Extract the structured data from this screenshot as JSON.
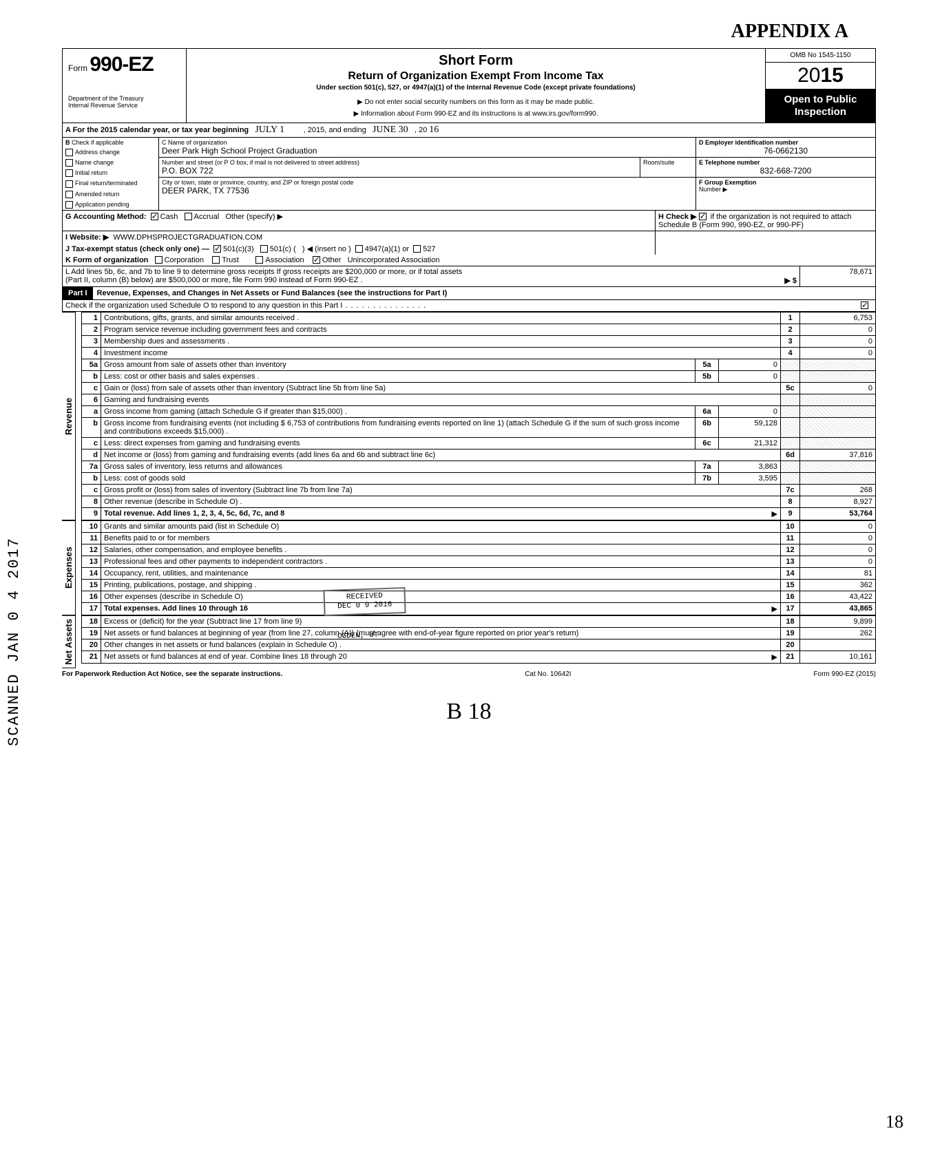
{
  "appendix": "APPENDIX A",
  "form": {
    "prefix": "Form",
    "number": "990-EZ",
    "dept": "Department of the Treasury\nInternal Revenue Service",
    "title1": "Short Form",
    "title2": "Return of Organization Exempt From Income Tax",
    "title3": "Under section 501(c), 527, or 4947(a)(1) of the Internal Revenue Code (except private foundations)",
    "title4": "▶ Do not enter social security numbers on this form as it may be made public.",
    "title5": "▶ Information about Form 990-EZ and its instructions is at www.irs.gov/form990.",
    "omb": "OMB No 1545-1150",
    "year_prefix": "20",
    "year_bold": "15",
    "open": "Open to Public\nInspection"
  },
  "lineA": {
    "label": "A For the 2015 calendar year, or tax year beginning",
    "begin": "JULY  1",
    "mid": ", 2015, and ending",
    "end": "JUNE  30",
    "end2": ", 20",
    "end3": "16"
  },
  "boxB": {
    "label": "B",
    "check": "Check if applicable",
    "items": [
      "Address change",
      "Name change",
      "Initial return",
      "Final return/terminated",
      "Amended return",
      "Application pending"
    ]
  },
  "boxC": {
    "label": "C Name of organization",
    "name": "Deer Park High School Project Graduation",
    "addr_label": "Number and street (or P O  box, if mail is not delivered to street address)",
    "room": "Room/suite",
    "addr": "P.O. BOX 722",
    "city_label": "City or town, state or province, country, and ZIP or foreign postal code",
    "city": "DEER PARK, TX 77536"
  },
  "boxD": {
    "label": "D Employer identification number",
    "val": "76-0662130"
  },
  "boxE": {
    "label": "E Telephone number",
    "val": "832-668-7200"
  },
  "boxF": {
    "label": "F Group Exemption",
    "label2": "Number ▶",
    "val": ""
  },
  "lineG": {
    "label": "G Accounting Method:",
    "cash": "Cash",
    "accrual": "Accrual",
    "other": "Other (specify) ▶"
  },
  "lineH": {
    "label": "H Check ▶",
    "text": "if the organization is not required to attach Schedule B (Form 990, 990-EZ, or 990-PF)"
  },
  "lineI": {
    "label": "I  Website: ▶",
    "val": "WWW.DPHSPROJECTGRADUATION.COM"
  },
  "lineJ": {
    "label": "J Tax-exempt status (check only one) —",
    "a": "501(c)(3)",
    "b": "501(c) (",
    "b2": ") ◀ (insert no )",
    "c": "4947(a)(1) or",
    "d": "527"
  },
  "lineK": {
    "label": "K Form of organization",
    "a": "Corporation",
    "b": "Trust",
    "c": "Association",
    "d": "Other",
    "val": "Unincorporated Association"
  },
  "lineL": {
    "text1": "L Add lines 5b, 6c, and 7b to line 9 to determine gross receipts  If gross receipts are $200,000 or more, or if total assets",
    "text2": "(Part II, column (B) below) are $500,000 or more, file Form 990 instead of Form 990-EZ .",
    "arrow": "▶  $",
    "val": "78,671"
  },
  "partI": {
    "hdr": "Part I",
    "title": "Revenue, Expenses, and Changes in Net Assets or Fund Balances (see the instructions for Part I)",
    "check": "Check if the organization used Schedule O to respond to any question in this Part I"
  },
  "sections": {
    "revenue": "Revenue",
    "expenses": "Expenses",
    "netassets": "Net Assets"
  },
  "lines": [
    {
      "n": "1",
      "desc": "Contributions, gifts, grants, and similar amounts received .",
      "rn": "1",
      "amt": "6,753"
    },
    {
      "n": "2",
      "desc": "Program service revenue including government fees and contracts",
      "rn": "2",
      "amt": "0"
    },
    {
      "n": "3",
      "desc": "Membership dues and assessments .",
      "rn": "3",
      "amt": "0"
    },
    {
      "n": "4",
      "desc": "Investment income",
      "rn": "4",
      "amt": "0"
    },
    {
      "n": "5a",
      "desc": "Gross amount from sale of assets other than inventory",
      "in": "5a",
      "iv": "0"
    },
    {
      "n": "b",
      "desc": "Less: cost or other basis and sales expenses .",
      "in": "5b",
      "iv": "0"
    },
    {
      "n": "c",
      "desc": "Gain or (loss) from sale of assets other than inventory (Subtract line 5b from line 5a)",
      "rn": "5c",
      "amt": "0"
    },
    {
      "n": "6",
      "desc": "Gaming and fundraising events"
    },
    {
      "n": "a",
      "desc": "Gross income from gaming (attach Schedule G if greater than $15,000) .",
      "in": "6a",
      "iv": "0"
    },
    {
      "n": "b",
      "desc": "Gross income from fundraising events (not including  $              6,753 of contributions from fundraising events reported on line 1) (attach Schedule G if the sum of such gross income and contributions exceeds $15,000) .",
      "in": "6b",
      "iv": "59,128"
    },
    {
      "n": "c",
      "desc": "Less: direct expenses from gaming and fundraising events",
      "in": "6c",
      "iv": "21,312"
    },
    {
      "n": "d",
      "desc": "Net income or (loss) from gaming and fundraising events (add lines 6a and 6b and subtract line 6c)",
      "rn": "6d",
      "amt": "37,816"
    },
    {
      "n": "7a",
      "desc": "Gross sales of inventory, less returns and allowances",
      "in": "7a",
      "iv": "3,863"
    },
    {
      "n": "b",
      "desc": "Less: cost of goods sold",
      "in": "7b",
      "iv": "3,595"
    },
    {
      "n": "c",
      "desc": "Gross profit or (loss) from sales of inventory (Subtract line 7b from line 7a)",
      "rn": "7c",
      "amt": "268"
    },
    {
      "n": "8",
      "desc": "Other revenue (describe in Schedule O) .",
      "rn": "8",
      "amt": "8,927"
    },
    {
      "n": "9",
      "desc": "Total revenue. Add lines 1, 2, 3, 4, 5c, 6d, 7c, and 8",
      "rn": "9",
      "amt": "53,764",
      "bold": true,
      "arrow": true
    }
  ],
  "exp_lines": [
    {
      "n": "10",
      "desc": "Grants and similar amounts paid (list in Schedule O)",
      "rn": "10",
      "amt": "0"
    },
    {
      "n": "11",
      "desc": "Benefits paid to or for members",
      "rn": "11",
      "amt": "0"
    },
    {
      "n": "12",
      "desc": "Salaries, other compensation, and employee benefits .",
      "rn": "12",
      "amt": "0"
    },
    {
      "n": "13",
      "desc": "Professional fees and other payments to independent contractors .",
      "rn": "13",
      "amt": "0"
    },
    {
      "n": "14",
      "desc": "Occupancy, rent, utilities, and maintenance",
      "rn": "14",
      "amt": "81"
    },
    {
      "n": "15",
      "desc": "Printing, publications, postage, and shipping .",
      "rn": "15",
      "amt": "362"
    },
    {
      "n": "16",
      "desc": "Other expenses (describe in Schedule O)",
      "rn": "16",
      "amt": "43,422"
    },
    {
      "n": "17",
      "desc": "Total expenses. Add lines 10 through 16",
      "rn": "17",
      "amt": "43,865",
      "bold": true,
      "arrow": true
    }
  ],
  "na_lines": [
    {
      "n": "18",
      "desc": "Excess or (deficit) for the year (Subtract line 17 from line 9)",
      "rn": "18",
      "amt": "9,899"
    },
    {
      "n": "19",
      "desc": "Net assets or fund balances at beginning of year (from line 27, column (A)) (must agree with end-of-year figure reported on prior year's return)",
      "rn": "19",
      "amt": "262"
    },
    {
      "n": "20",
      "desc": "Other changes in net assets or fund balances (explain in Schedule O) .",
      "rn": "20",
      "amt": ""
    },
    {
      "n": "21",
      "desc": "Net assets or fund balances at end of year. Combine lines 18 through 20",
      "rn": "21",
      "amt": "10,161",
      "arrow": true
    }
  ],
  "stamp": {
    "received": "RECEIVED",
    "date": "DEC 0 9 2016",
    "ogden": "OGDEN, UT"
  },
  "vert_stamp": "SCANNED JAN 0 4 2017",
  "footer": {
    "left": "For Paperwork Reduction Act Notice, see the separate instructions.",
    "mid": "Cat  No. 10642I",
    "right": "Form 990-EZ (2015)"
  },
  "hw_bottom": "B 18",
  "page_num": "18"
}
